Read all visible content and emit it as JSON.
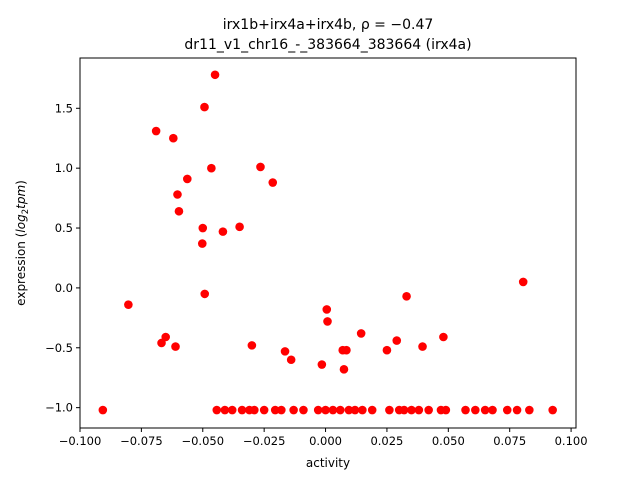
{
  "chart_data": {
    "type": "scatter",
    "title_line1": "irx1b+irx4a+irx4b, ρ = −0.47",
    "title_line2": "dr11_v1_chr16_-_383664_383664 (irx4a)",
    "xlabel": "activity",
    "ylabel_prefix": "expression (",
    "ylabel_math": "log",
    "ylabel_sub": "2",
    "ylabel_tail": "tpm",
    "ylabel_suffix": ")",
    "xlim": [
      -0.1,
      0.102
    ],
    "ylim": [
      -1.17,
      1.92
    ],
    "xticks": [
      -0.1,
      -0.075,
      -0.05,
      -0.025,
      0.0,
      0.025,
      0.05,
      0.075,
      0.1
    ],
    "xtick_labels": [
      "−0.100",
      "−0.075",
      "−0.050",
      "−0.025",
      "0.000",
      "0.025",
      "0.050",
      "0.075",
      "0.100"
    ],
    "yticks": [
      -1.0,
      -0.5,
      0.0,
      0.5,
      1.0,
      1.5
    ],
    "ytick_labels": [
      "−1.0",
      "−0.5",
      "0.0",
      "0.5",
      "1.0",
      "1.5"
    ],
    "marker_color": "#ff0000",
    "grid": false,
    "legend": "none",
    "points": [
      {
        "x": -0.0907,
        "y": -1.02
      },
      {
        "x": -0.0803,
        "y": -0.14
      },
      {
        "x": -0.069,
        "y": 1.31
      },
      {
        "x": -0.0668,
        "y": -0.46
      },
      {
        "x": -0.0651,
        "y": -0.41
      },
      {
        "x": -0.062,
        "y": 1.25
      },
      {
        "x": -0.0611,
        "y": -0.49
      },
      {
        "x": -0.0603,
        "y": 0.78
      },
      {
        "x": -0.0597,
        "y": 0.64
      },
      {
        "x": -0.0563,
        "y": 0.91
      },
      {
        "x": -0.05,
        "y": 0.5
      },
      {
        "x": -0.0502,
        "y": 0.37
      },
      {
        "x": -0.0493,
        "y": 1.51
      },
      {
        "x": -0.0492,
        "y": -0.05
      },
      {
        "x": -0.0465,
        "y": 1.0
      },
      {
        "x": -0.045,
        "y": 1.78
      },
      {
        "x": -0.0443,
        "y": -1.02
      },
      {
        "x": -0.0418,
        "y": 0.47
      },
      {
        "x": -0.041,
        "y": -1.02
      },
      {
        "x": -0.038,
        "y": -1.02
      },
      {
        "x": -0.035,
        "y": 0.51
      },
      {
        "x": -0.034,
        "y": -1.02
      },
      {
        "x": -0.031,
        "y": -1.02
      },
      {
        "x": -0.03,
        "y": -0.48
      },
      {
        "x": -0.029,
        "y": -1.02
      },
      {
        "x": -0.0265,
        "y": 1.01
      },
      {
        "x": -0.025,
        "y": -1.02
      },
      {
        "x": -0.0215,
        "y": 0.88
      },
      {
        "x": -0.0205,
        "y": -1.02
      },
      {
        "x": -0.018,
        "y": -1.02
      },
      {
        "x": -0.0165,
        "y": -0.53
      },
      {
        "x": -0.014,
        "y": -0.6
      },
      {
        "x": -0.013,
        "y": -1.02
      },
      {
        "x": -0.009,
        "y": -1.02
      },
      {
        "x": -0.003,
        "y": -1.02
      },
      {
        "x": -0.0015,
        "y": -0.64
      },
      {
        "x": 0.0,
        "y": -1.02
      },
      {
        "x": 0.0005,
        "y": -0.18
      },
      {
        "x": 0.0008,
        "y": -0.28
      },
      {
        "x": 0.003,
        "y": -1.02
      },
      {
        "x": 0.006,
        "y": -1.02
      },
      {
        "x": 0.007,
        "y": -0.52
      },
      {
        "x": 0.0075,
        "y": -0.68
      },
      {
        "x": 0.0085,
        "y": -0.52
      },
      {
        "x": 0.0095,
        "y": -1.02
      },
      {
        "x": 0.012,
        "y": -1.02
      },
      {
        "x": 0.0145,
        "y": -0.38
      },
      {
        "x": 0.015,
        "y": -1.02
      },
      {
        "x": 0.019,
        "y": -1.02
      },
      {
        "x": 0.025,
        "y": -0.52
      },
      {
        "x": 0.026,
        "y": -1.02
      },
      {
        "x": 0.029,
        "y": -0.44
      },
      {
        "x": 0.03,
        "y": -1.02
      },
      {
        "x": 0.032,
        "y": -1.02
      },
      {
        "x": 0.033,
        "y": -0.07
      },
      {
        "x": 0.035,
        "y": -1.02
      },
      {
        "x": 0.038,
        "y": -1.02
      },
      {
        "x": 0.0395,
        "y": -0.49
      },
      {
        "x": 0.042,
        "y": -1.02
      },
      {
        "x": 0.047,
        "y": -1.02
      },
      {
        "x": 0.048,
        "y": -0.41
      },
      {
        "x": 0.049,
        "y": -1.02
      },
      {
        "x": 0.057,
        "y": -1.02
      },
      {
        "x": 0.061,
        "y": -1.02
      },
      {
        "x": 0.065,
        "y": -1.02
      },
      {
        "x": 0.068,
        "y": -1.02
      },
      {
        "x": 0.074,
        "y": -1.02
      },
      {
        "x": 0.078,
        "y": -1.02
      },
      {
        "x": 0.0805,
        "y": 0.05
      },
      {
        "x": 0.083,
        "y": -1.02
      },
      {
        "x": 0.0925,
        "y": -1.02
      }
    ]
  }
}
